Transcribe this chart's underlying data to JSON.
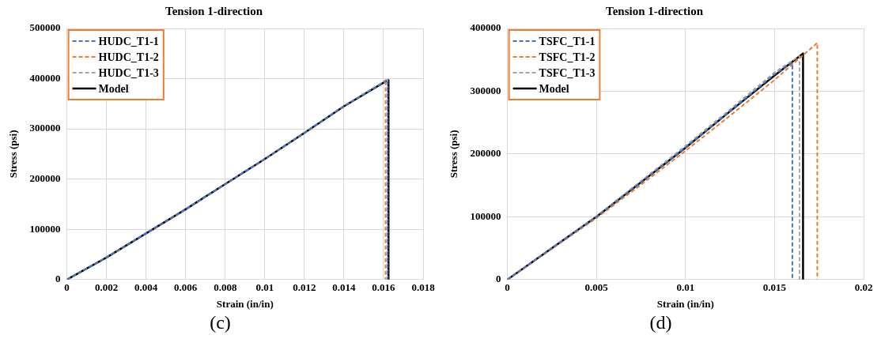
{
  "chart_data": [
    {
      "type": "line",
      "title": "Tension 1-direction",
      "xlabel": "Strain (in/in)",
      "ylabel": "Stress (psi)",
      "annotations": [
        "(c)"
      ],
      "xlim": [
        0,
        0.018
      ],
      "xticks": [
        0,
        0.002,
        0.004,
        0.006,
        0.008,
        0.01,
        0.012,
        0.014,
        0.016,
        0.018
      ],
      "ylim": [
        0,
        500000
      ],
      "yticks": [
        0,
        100000,
        200000,
        300000,
        400000,
        500000
      ],
      "grid": true,
      "legend": "top left",
      "marker": "none",
      "series": [
        {
          "name": "HUDC_T1-1",
          "color": "#4472c4",
          "line_style": "dashed",
          "x": [
            0,
            0.002,
            0.004,
            0.006,
            0.008,
            0.01,
            0.012,
            0.014,
            0.016,
            0.0162,
            0.0162
          ],
          "values": [
            0,
            44000,
            92000,
            140000,
            190000,
            240000,
            292000,
            345000,
            392000,
            398000,
            0
          ]
        },
        {
          "name": "HUDC_T1-2",
          "color": "#ed7d31",
          "line_style": "dashed",
          "x": [
            0.0161,
            0.0161
          ],
          "values": [
            395000,
            0
          ]
        },
        {
          "name": "HUDC_T1-3",
          "color": "#a5a5a5",
          "line_style": "dashed",
          "x": [
            0,
            0.002,
            0.004,
            0.006,
            0.008,
            0.01,
            0.012,
            0.014,
            0.016,
            0.0162,
            0.0162
          ],
          "values": [
            0,
            44000,
            92000,
            140000,
            190000,
            240000,
            292000,
            346000,
            394000,
            400000,
            0
          ]
        },
        {
          "name": "Model",
          "color": "#000000",
          "line_style": "solid",
          "x": [
            0,
            0.002,
            0.004,
            0.006,
            0.008,
            0.01,
            0.012,
            0.014,
            0.016,
            0.01625,
            0.01625
          ],
          "values": [
            0,
            44000,
            92000,
            140000,
            190000,
            240000,
            292000,
            345000,
            392000,
            397000,
            0
          ]
        }
      ]
    },
    {
      "type": "line",
      "title": "Tension 1-direction",
      "xlabel": "Strain (in/in)",
      "ylabel": "Stress (psi)",
      "annotations": [
        "(d)"
      ],
      "xlim": [
        0,
        0.02
      ],
      "xticks": [
        0,
        0.005,
        0.01,
        0.015,
        0.02
      ],
      "ylim": [
        0,
        400000
      ],
      "yticks": [
        0,
        100000,
        200000,
        300000,
        400000
      ],
      "grid": true,
      "legend": "top left",
      "marker": "none",
      "series": [
        {
          "name": "TSFC_T1-1",
          "color": "#4472c4",
          "line_style": "dashed",
          "x": [
            0,
            0.0025,
            0.005,
            0.0075,
            0.01,
            0.0125,
            0.015,
            0.016,
            0.016
          ],
          "values": [
            0,
            50000,
            100000,
            155000,
            210000,
            268000,
            327000,
            345000,
            0
          ]
        },
        {
          "name": "TSFC_T1-2",
          "color": "#ed7d31",
          "line_style": "dashed",
          "x": [
            0,
            0.0025,
            0.005,
            0.0075,
            0.01,
            0.0125,
            0.015,
            0.0174,
            0.0174
          ],
          "values": [
            0,
            49000,
            98000,
            151000,
            205000,
            261000,
            318000,
            377000,
            0
          ]
        },
        {
          "name": "TSFC_T1-3",
          "color": "#a5a5a5",
          "line_style": "dashed",
          "x": [
            0,
            0.0025,
            0.005,
            0.0075,
            0.01,
            0.0125,
            0.015,
            0.0164,
            0.0164
          ],
          "values": [
            0,
            51000,
            101000,
            157000,
            213000,
            271000,
            330000,
            356000,
            0
          ]
        },
        {
          "name": "Model",
          "color": "#000000",
          "line_style": "solid",
          "x": [
            0,
            0.0025,
            0.005,
            0.0075,
            0.01,
            0.0125,
            0.015,
            0.0166,
            0.0166
          ],
          "values": [
            0,
            50000,
            100000,
            155000,
            210000,
            268000,
            325000,
            360000,
            0
          ]
        }
      ]
    }
  ]
}
